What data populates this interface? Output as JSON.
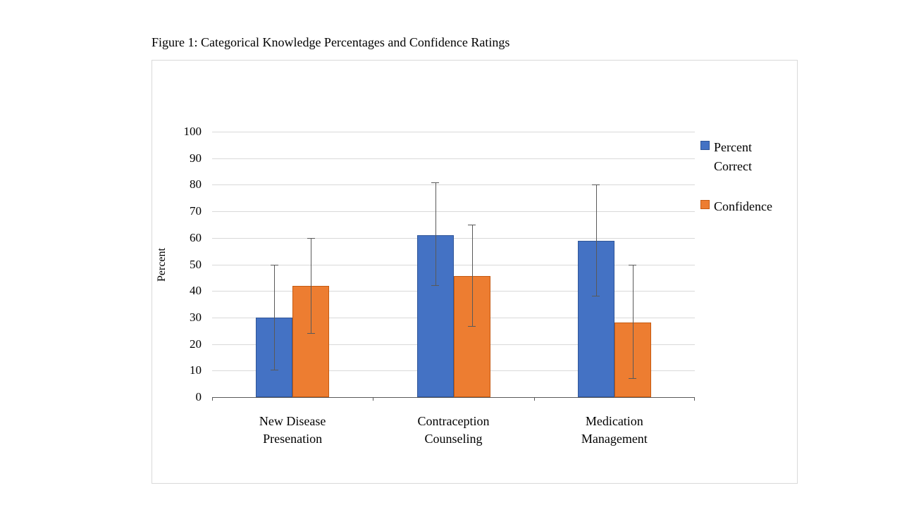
{
  "chart_data": {
    "type": "bar",
    "title": "Figure 1: Categorical Knowledge Percentages and Confidence Ratings",
    "ylabel": "Percent",
    "ylim": [
      0,
      100
    ],
    "yticks": [
      0,
      10,
      20,
      30,
      40,
      50,
      60,
      70,
      80,
      90,
      100
    ],
    "grid": true,
    "legend_position": "right",
    "categories": [
      "New Disease\nPresenation",
      "Contraception\nCounseling",
      "Medication\nManagement"
    ],
    "series": [
      {
        "name": "Percent Correct",
        "color": "#4472C4",
        "border_color": "#2F5597",
        "values": [
          30,
          61,
          59
        ],
        "error_low": [
          10,
          42,
          38
        ],
        "error_high": [
          50,
          81,
          80
        ]
      },
      {
        "name": "Confidence",
        "color": "#ED7D31",
        "border_color": "#C55A11",
        "values": [
          42,
          45.5,
          28
        ],
        "error_low": [
          24,
          26.5,
          7
        ],
        "error_high": [
          60,
          65,
          50
        ]
      }
    ]
  }
}
